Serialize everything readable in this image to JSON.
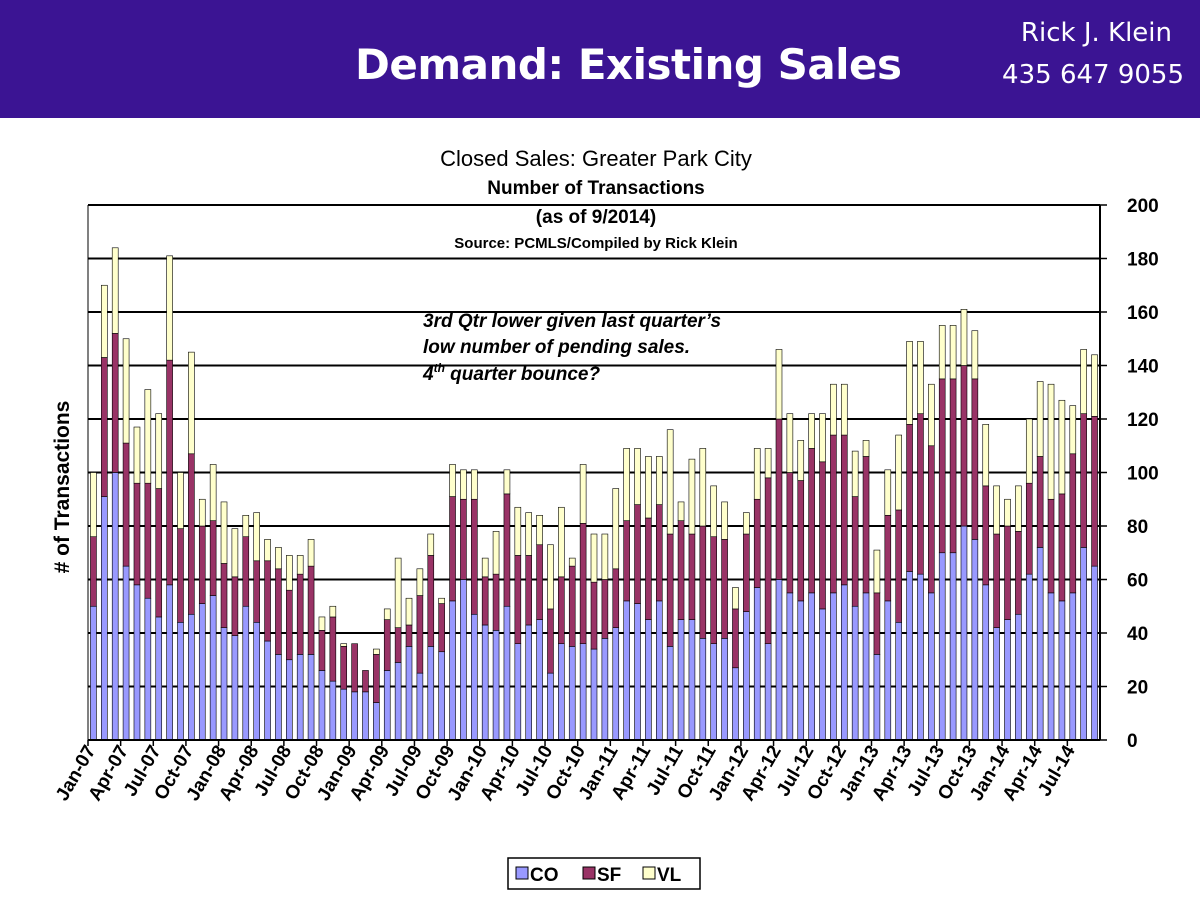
{
  "header": {
    "title": "Demand: Existing Sales",
    "name": "Rick J. Klein",
    "phone": "435 647 9055",
    "background": "#3b1493"
  },
  "chart_data": {
    "type": "bar",
    "stacked": true,
    "title": "Closed Sales: Greater Park City",
    "subtitle": "Number of Transactions",
    "subtitle2": "(as of 9/2014)",
    "source": "Source: PCMLS/Compiled by Rick Klein",
    "ylabel": "# of Transactions",
    "ylim": [
      0,
      200
    ],
    "ytick_step": 20,
    "y_axis_side": "right",
    "grid": true,
    "annotation": {
      "line1": "3rd Qtr lower given last quarter’s",
      "line2": "low number of pending sales.",
      "line3_prefix": "4",
      "line3_sup": "th",
      "line3_suffix": " quarter bounce?"
    },
    "legend": {
      "position": "bottom"
    },
    "categories": [
      "Jan-07",
      "Feb-07",
      "Mar-07",
      "Apr-07",
      "May-07",
      "Jun-07",
      "Jul-07",
      "Aug-07",
      "Sep-07",
      "Oct-07",
      "Nov-07",
      "Dec-07",
      "Jan-08",
      "Feb-08",
      "Mar-08",
      "Apr-08",
      "May-08",
      "Jun-08",
      "Jul-08",
      "Aug-08",
      "Sep-08",
      "Oct-08",
      "Nov-08",
      "Dec-08",
      "Jan-09",
      "Feb-09",
      "Mar-09",
      "Apr-09",
      "May-09",
      "Jun-09",
      "Jul-09",
      "Aug-09",
      "Sep-09",
      "Oct-09",
      "Nov-09",
      "Dec-09",
      "Jan-10",
      "Feb-10",
      "Mar-10",
      "Apr-10",
      "May-10",
      "Jun-10",
      "Jul-10",
      "Aug-10",
      "Sep-10",
      "Oct-10",
      "Nov-10",
      "Dec-10",
      "Jan-11",
      "Feb-11",
      "Mar-11",
      "Apr-11",
      "May-11",
      "Jun-11",
      "Jul-11",
      "Aug-11",
      "Sep-11",
      "Oct-11",
      "Nov-11",
      "Dec-11",
      "Jan-12",
      "Feb-12",
      "Mar-12",
      "Apr-12",
      "May-12",
      "Jun-12",
      "Jul-12",
      "Aug-12",
      "Sep-12",
      "Oct-12",
      "Nov-12",
      "Dec-12",
      "Jan-13",
      "Feb-13",
      "Mar-13",
      "Apr-13",
      "May-13",
      "Jun-13",
      "Jul-13",
      "Aug-13",
      "Sep-13",
      "Oct-13",
      "Nov-13",
      "Dec-13",
      "Jan-14",
      "Feb-14",
      "Mar-14",
      "Apr-14",
      "May-14",
      "Jun-14",
      "Jul-14",
      "Aug-14",
      "Sep-14"
    ],
    "xtick_labels": [
      "Jan-07",
      "Apr-07",
      "Jul-07",
      "Oct-07",
      "Jan-08",
      "Apr-08",
      "Jul-08",
      "Oct-08",
      "Jan-09",
      "Apr-09",
      "Jul-09",
      "Oct-09",
      "Jan-10",
      "Apr-10",
      "Jul-10",
      "Oct-10",
      "Jan-11",
      "Apr-11",
      "Jul-11",
      "Oct-11",
      "Jan-12",
      "Apr-12",
      "Jul-12",
      "Oct-12",
      "Jan-13",
      "Apr-13",
      "Jul-13",
      "Oct-13",
      "Jan-14",
      "Apr-14",
      "Jul-14"
    ],
    "series": [
      {
        "name": "CO",
        "color": "#9999ff",
        "values": [
          50,
          91,
          100,
          65,
          58,
          53,
          46,
          58,
          44,
          47,
          51,
          54,
          42,
          39,
          50,
          44,
          37,
          32,
          30,
          32,
          32,
          26,
          22,
          19,
          18,
          18,
          14,
          26,
          29,
          35,
          25,
          35,
          33,
          52,
          60,
          47,
          43,
          41,
          50,
          36,
          43,
          45,
          25,
          36,
          35,
          36,
          34,
          38,
          42,
          52,
          51,
          45,
          52,
          35,
          45,
          45,
          38,
          36,
          38,
          27,
          48,
          57,
          36,
          60,
          55,
          52,
          55,
          49,
          55,
          58,
          50,
          55,
          32,
          52,
          44,
          63,
          62,
          55,
          70,
          70,
          80,
          75,
          58,
          42,
          45,
          47,
          62,
          72,
          55,
          52,
          55,
          72,
          65
        ]
      },
      {
        "name": "SF",
        "color": "#993366",
        "values": [
          26,
          52,
          52,
          46,
          38,
          43,
          48,
          84,
          35,
          60,
          29,
          28,
          24,
          22,
          26,
          23,
          30,
          32,
          26,
          30,
          33,
          15,
          24,
          16,
          18,
          8,
          18,
          19,
          13,
          8,
          29,
          34,
          18,
          39,
          30,
          43,
          18,
          21,
          42,
          33,
          26,
          28,
          24,
          25,
          30,
          45,
          25,
          22,
          22,
          30,
          37,
          38,
          36,
          42,
          37,
          32,
          42,
          40,
          37,
          22,
          29,
          33,
          62,
          60,
          45,
          45,
          54,
          55,
          59,
          56,
          41,
          51,
          23,
          32,
          42,
          55,
          60,
          55,
          65,
          65,
          60,
          60,
          37,
          35,
          35,
          31,
          34,
          34,
          35,
          40,
          52,
          50,
          56
        ]
      },
      {
        "name": "VL",
        "color": "#ffffcc",
        "values": [
          24,
          27,
          32,
          39,
          21,
          35,
          28,
          39,
          21,
          38,
          10,
          21,
          23,
          18,
          8,
          18,
          8,
          8,
          13,
          7,
          10,
          5,
          4,
          1,
          0,
          0,
          2,
          4,
          26,
          10,
          10,
          8,
          2,
          12,
          11,
          11,
          7,
          16,
          9,
          18,
          16,
          11,
          24,
          26,
          3,
          22,
          18,
          17,
          30,
          27,
          21,
          23,
          18,
          39,
          7,
          28,
          29,
          19,
          14,
          8,
          8,
          19,
          11,
          26,
          22,
          15,
          13,
          18,
          19,
          19,
          17,
          6,
          16,
          17,
          28,
          31,
          27,
          23,
          20,
          20,
          21,
          18,
          23,
          18,
          10,
          17,
          24,
          28,
          43,
          35,
          18,
          24,
          23
        ]
      }
    ]
  }
}
